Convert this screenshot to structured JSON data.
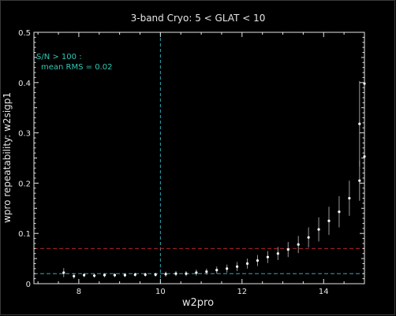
{
  "chart_data": {
    "type": "scatter",
    "title": "3-band Cryo:  5 < GLAT < 10",
    "xlabel": "w2pro",
    "ylabel": "wpro repeatability: w2sigp1",
    "xlim": [
      6.9,
      15.0
    ],
    "ylim": [
      0,
      0.5
    ],
    "xticks": [
      8,
      10,
      12,
      14
    ],
    "xtick_labels": [
      "8",
      "10",
      "12",
      "14"
    ],
    "yticks": [
      0,
      0.1,
      0.2,
      0.3,
      0.4,
      0.5
    ],
    "ytick_labels": [
      "0",
      "0.1",
      "0.2",
      "0.3",
      "0.4",
      "0.5"
    ],
    "annotation_lines": [
      "S/N > 100 :",
      "mean RMS =  0.02"
    ],
    "reference_lines": {
      "vertical_x": 10,
      "horizontal_cyan_y": 0.02,
      "horizontal_red_y": 0.07
    },
    "colors": {
      "background": "#000000",
      "points": "#ffffff",
      "error_bars": "#9a9a9a",
      "axes": "#e6e6e6",
      "annotation": "#2fc7b4",
      "cyan_line": "#2fa8b8",
      "red_line": "#b3222a"
    },
    "series": [
      {
        "x": [
          7.63,
          7.88,
          8.13,
          8.38,
          8.63,
          8.88,
          9.13,
          9.38,
          9.63,
          9.88,
          10.13,
          10.38,
          10.63,
          10.88,
          11.13,
          11.38,
          11.63,
          11.88,
          12.13,
          12.38,
          12.63,
          12.88,
          13.13,
          13.38,
          13.63,
          13.88,
          14.13,
          14.38,
          14.63,
          14.88,
          15.0
        ],
        "y": [
          0.022,
          0.015,
          0.017,
          0.016,
          0.017,
          0.017,
          0.017,
          0.018,
          0.018,
          0.018,
          0.019,
          0.02,
          0.02,
          0.022,
          0.024,
          0.027,
          0.03,
          0.034,
          0.04,
          0.046,
          0.053,
          0.06,
          0.068,
          0.078,
          0.092,
          0.108,
          0.125,
          0.143,
          0.17,
          0.205,
          0.253
        ],
        "err": [
          0.009,
          0.005,
          0.004,
          0.004,
          0.004,
          0.004,
          0.004,
          0.004,
          0.004,
          0.004,
          0.005,
          0.005,
          0.005,
          0.006,
          0.006,
          0.007,
          0.008,
          0.009,
          0.01,
          0.011,
          0.012,
          0.013,
          0.015,
          0.017,
          0.02,
          0.024,
          0.028,
          0.031,
          0.035,
          0.04,
          0.045
        ]
      }
    ],
    "extra_points": [
      {
        "x": 14.88,
        "y": 0.318,
        "err": 0.085
      },
      {
        "x": 15.0,
        "y": 0.398,
        "err": 0.0
      }
    ]
  }
}
